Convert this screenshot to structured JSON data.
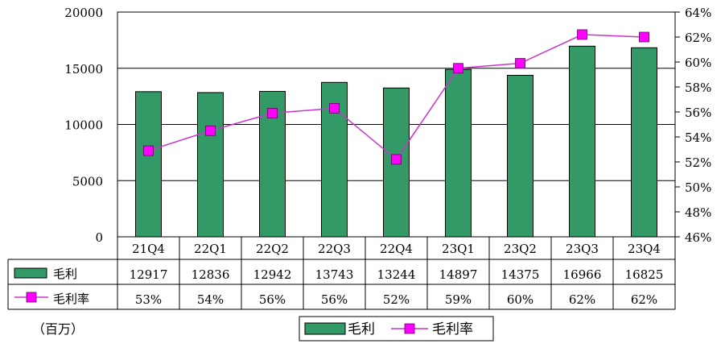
{
  "chart_data": {
    "type": "bar",
    "categories": [
      "21Q4",
      "22Q1",
      "22Q2",
      "22Q3",
      "22Q4",
      "23Q1",
      "23Q2",
      "23Q3",
      "23Q4"
    ],
    "series": [
      {
        "name": "毛利",
        "type": "bar",
        "axis": "left",
        "values": [
          12917,
          12836,
          12942,
          13743,
          13244,
          14897,
          14375,
          16966,
          16825
        ],
        "color": "#339966"
      },
      {
        "name": "毛利率",
        "type": "line",
        "axis": "right",
        "values": [
          53,
          54,
          56,
          56,
          52,
          59,
          60,
          62,
          62
        ],
        "plotted_values": [
          52.9,
          54.5,
          55.9,
          56.3,
          52.2,
          59.5,
          59.9,
          62.2,
          62.0
        ],
        "labels": [
          "53%",
          "54%",
          "56%",
          "56%",
          "52%",
          "59%",
          "60%",
          "62%",
          "62%"
        ],
        "line_color": "#CC33CC",
        "marker_color": "#FF00FF"
      }
    ],
    "y_left": {
      "ylim": [
        0,
        20000
      ],
      "ticks": [
        0,
        5000,
        10000,
        15000,
        20000
      ],
      "tick_labels": [
        "0",
        "5000",
        "10000",
        "15000",
        "20000"
      ]
    },
    "y_right": {
      "ylim": [
        46,
        64
      ],
      "ticks": [
        46,
        48,
        50,
        52,
        54,
        56,
        58,
        60,
        62,
        64
      ],
      "tick_labels": [
        "46%",
        "48%",
        "50%",
        "52%",
        "54%",
        "56%",
        "58%",
        "60%",
        "62%",
        "64%"
      ]
    },
    "unit_note": "（百万）",
    "grid": true,
    "legend_position": "bottom-center",
    "data_table": true
  }
}
